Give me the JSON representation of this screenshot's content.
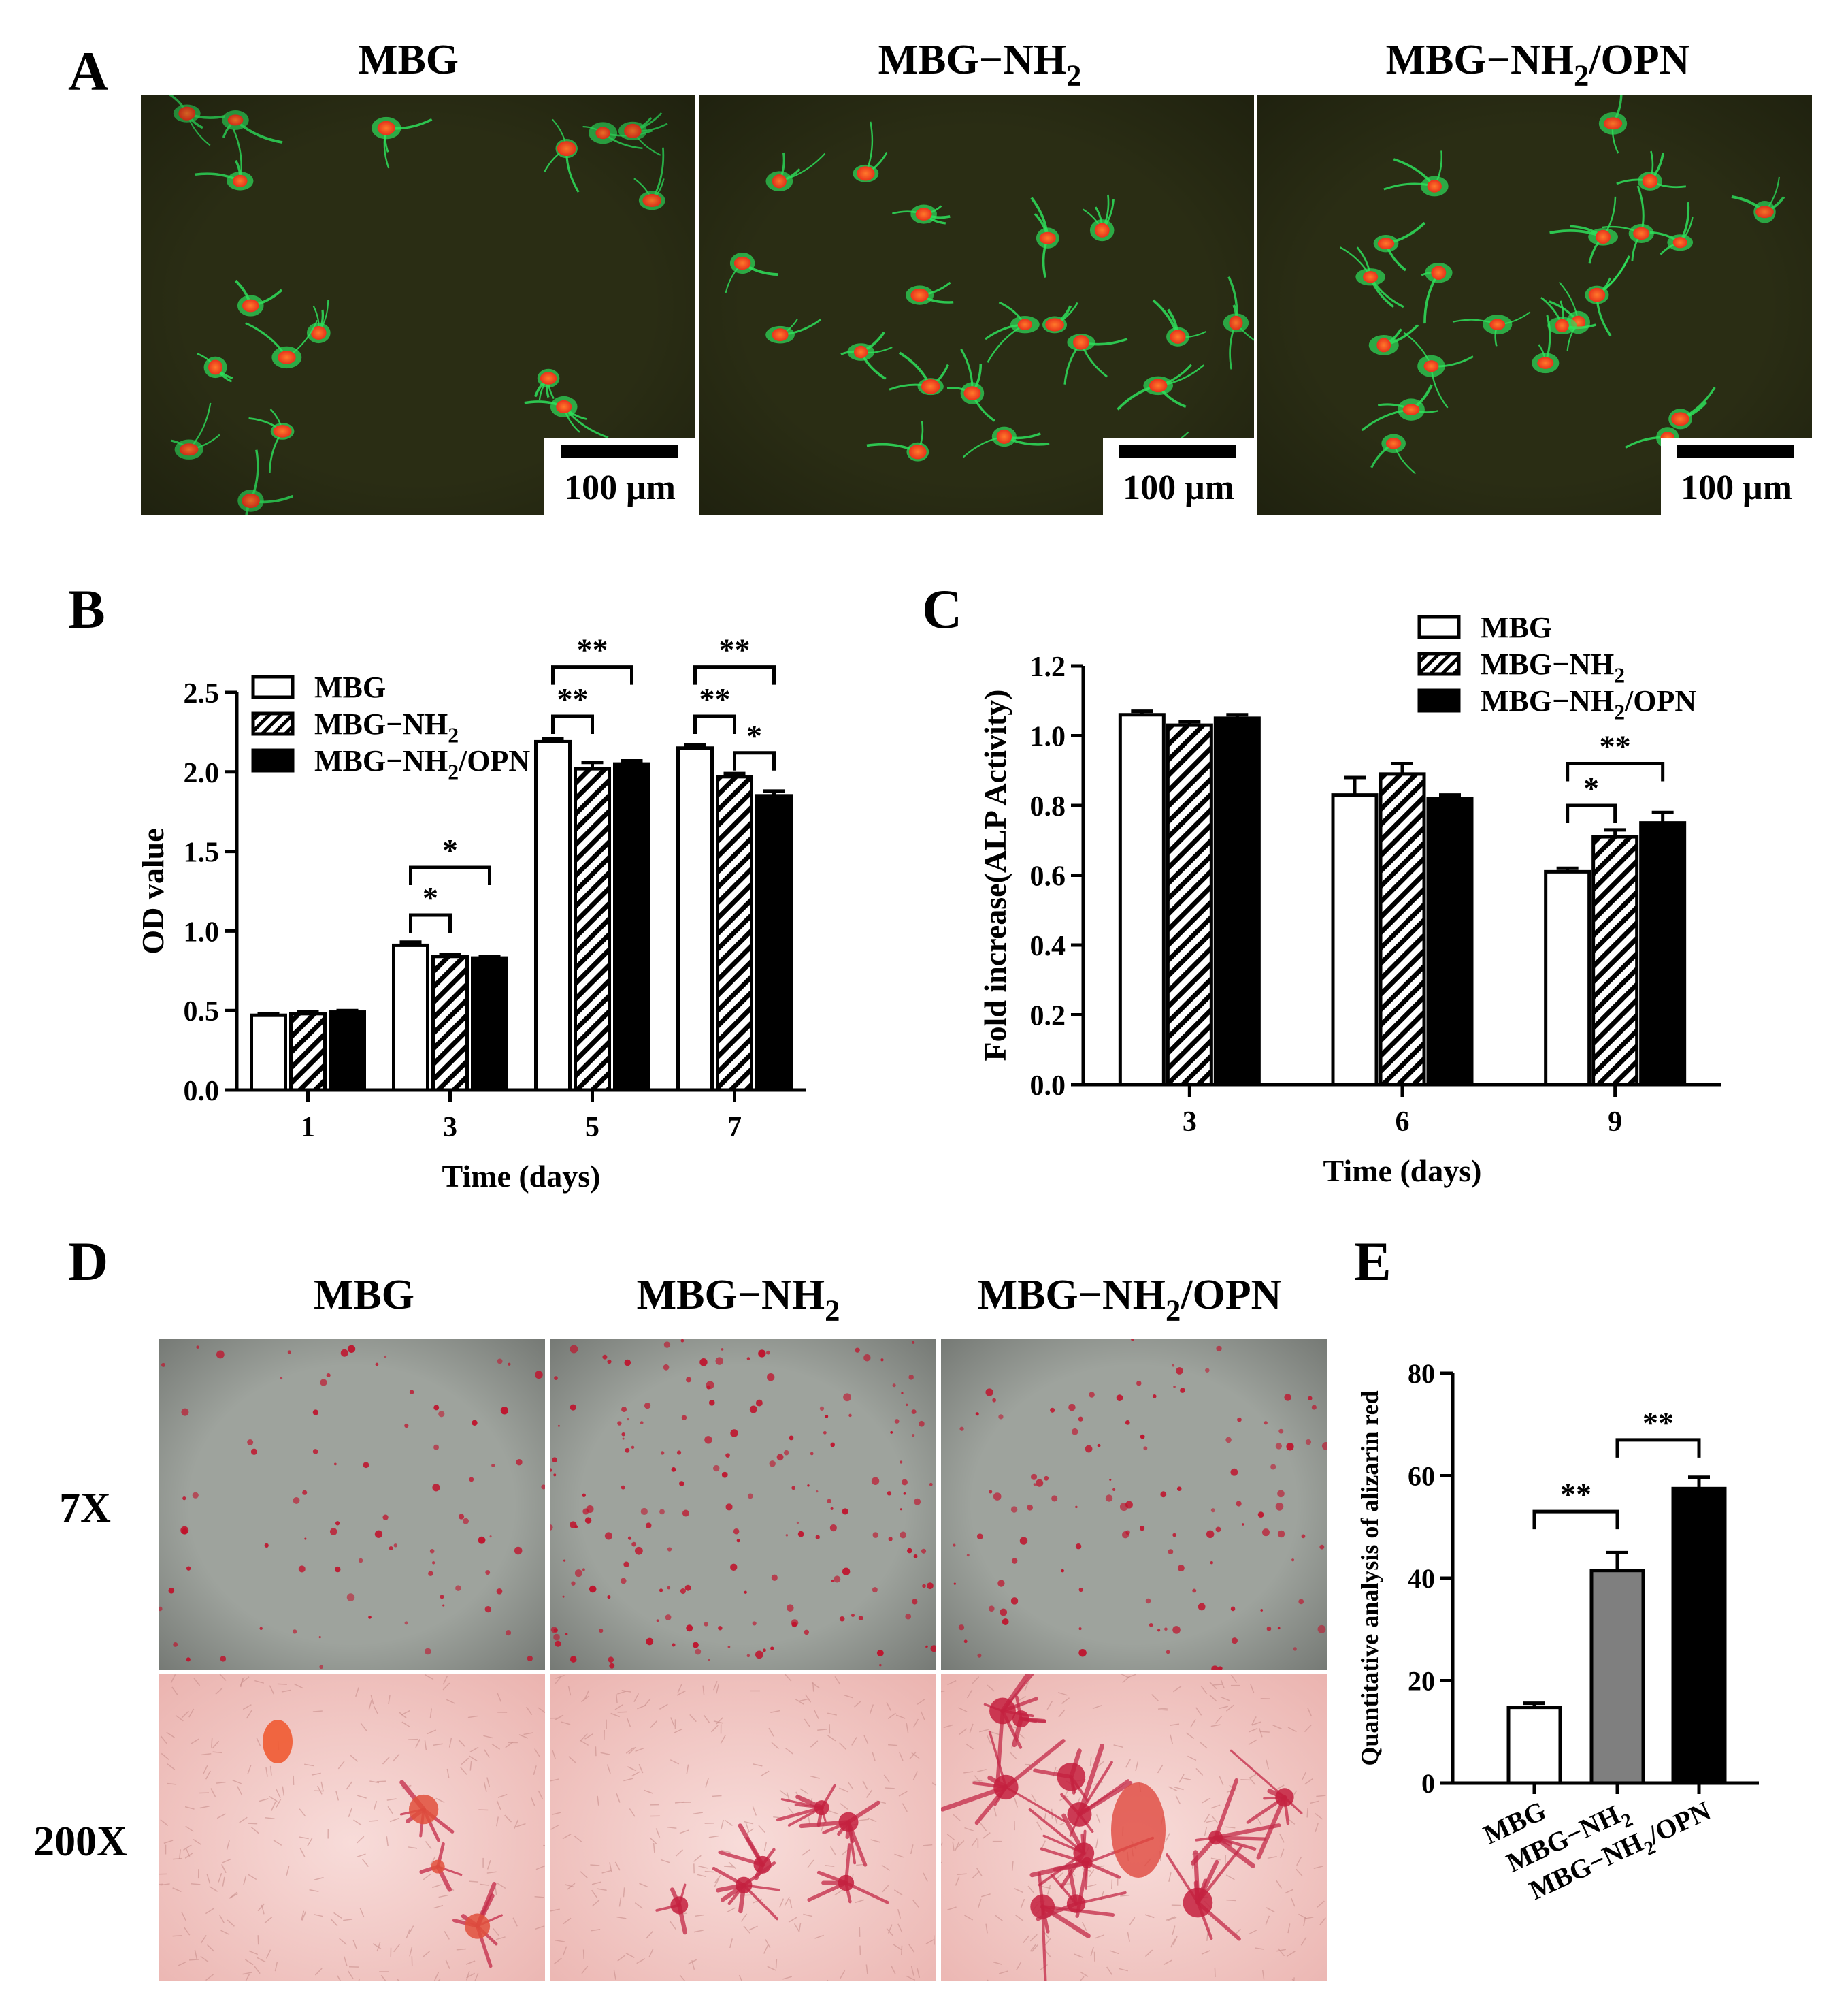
{
  "panel_letters": {
    "A": "A",
    "B": "B",
    "C": "C",
    "D": "D",
    "E": "E"
  },
  "colors": {
    "fluor_bg": "#2a2d14",
    "nucleus": "#f0441c",
    "cytoskeleton": "#2ee05a",
    "stain_dark_bg": "#9ea39d",
    "stain_light_bg": "#f4c9c5",
    "mineral": "#c0102a",
    "bar_gray": "#7f7f7f"
  },
  "panel_a": {
    "titles": [
      "MBG",
      "MBG−NH",
      "MBG−NH"
    ],
    "title_subs": [
      "",
      "2",
      "2"
    ],
    "title_tails": [
      "",
      "",
      "/OPN"
    ],
    "scalebar_label": "100 μm"
  },
  "panel_d": {
    "titles": [
      "MBG",
      "MBG−NH",
      "MBG−NH"
    ],
    "title_subs": [
      "",
      "2",
      "2"
    ],
    "title_tails": [
      "",
      "",
      "/OPN"
    ],
    "rows": [
      "7X",
      "200X"
    ]
  },
  "chart_data": [
    {
      "id": "B",
      "type": "bar",
      "xlabel": "Time (days)",
      "ylabel": "OD value",
      "categories": [
        "1",
        "3",
        "5",
        "7"
      ],
      "ylim": [
        0,
        2.5
      ],
      "yticks": [
        "0.0",
        "0.5",
        "1.0",
        "1.5",
        "2.0",
        "2.5"
      ],
      "legend_position": "top-left",
      "series": [
        {
          "name": "MBG",
          "name_sub": "",
          "name_tail": "",
          "fill": "open",
          "values": [
            0.47,
            0.91,
            2.19,
            2.15
          ],
          "errors": [
            0.01,
            0.02,
            0.02,
            0.02
          ]
        },
        {
          "name": "MBG−NH",
          "name_sub": "2",
          "name_tail": "",
          "fill": "hatch",
          "values": [
            0.48,
            0.84,
            2.02,
            1.97
          ],
          "errors": [
            0.01,
            0.01,
            0.04,
            0.02
          ]
        },
        {
          "name": "MBG−NH",
          "name_sub": "2",
          "name_tail": "/OPN",
          "fill": "solid",
          "values": [
            0.49,
            0.83,
            2.05,
            1.85
          ],
          "errors": [
            0.01,
            0.01,
            0.02,
            0.03
          ]
        }
      ],
      "significance": [
        {
          "category": 1,
          "from": 0,
          "to": 1,
          "label": "*",
          "y": 1.1
        },
        {
          "category": 1,
          "from": 0,
          "to": 2,
          "label": "*",
          "y": 1.4
        },
        {
          "category": 2,
          "from": 0,
          "to": 1,
          "label": "**",
          "y": 2.35
        },
        {
          "category": 2,
          "from": 0,
          "to": 2,
          "label": "**",
          "y": 2.66
        },
        {
          "category": 3,
          "from": 0,
          "to": 1,
          "label": "**",
          "y": 2.35
        },
        {
          "category": 3,
          "from": 1,
          "to": 2,
          "label": "*",
          "y": 2.12
        },
        {
          "category": 3,
          "from": 0,
          "to": 2,
          "label": "**",
          "y": 2.66
        }
      ]
    },
    {
      "id": "C",
      "type": "bar",
      "xlabel": "Time (days)",
      "ylabel": "Fold increase(ALP Activity)",
      "categories": [
        "3",
        "6",
        "9"
      ],
      "ylim": [
        0,
        1.2
      ],
      "yticks": [
        "0.0",
        "0.2",
        "0.4",
        "0.6",
        "0.8",
        "1.0",
        "1.2"
      ],
      "legend_position": "top-right",
      "series": [
        {
          "name": "MBG",
          "name_sub": "",
          "name_tail": "",
          "fill": "open",
          "values": [
            1.06,
            0.83,
            0.61
          ],
          "errors": [
            0.01,
            0.05,
            0.01
          ]
        },
        {
          "name": "MBG−NH",
          "name_sub": "2",
          "name_tail": "",
          "fill": "hatch",
          "values": [
            1.03,
            0.89,
            0.71
          ],
          "errors": [
            0.01,
            0.03,
            0.02
          ]
        },
        {
          "name": "MBG−NH",
          "name_sub": "2",
          "name_tail": "/OPN",
          "fill": "solid",
          "values": [
            1.05,
            0.82,
            0.75
          ],
          "errors": [
            0.01,
            0.01,
            0.03
          ]
        }
      ],
      "significance": [
        {
          "category": 2,
          "from": 0,
          "to": 1,
          "label": "*",
          "y": 0.8
        },
        {
          "category": 2,
          "from": 0,
          "to": 2,
          "label": "**",
          "y": 0.92
        }
      ]
    },
    {
      "id": "E",
      "type": "bar",
      "ylabel": "Quantitative analysis of alizarin red",
      "categories": [
        "MBG",
        "MBG−NH",
        "MBG−NH"
      ],
      "category_subs": [
        "",
        "2",
        "2"
      ],
      "category_tails": [
        "",
        "",
        "/OPN"
      ],
      "ylim": [
        0,
        80
      ],
      "yticks": [
        "0",
        "20",
        "40",
        "60",
        "80"
      ],
      "fills": [
        "open",
        "gray",
        "solid"
      ],
      "values": [
        14.8,
        41.5,
        57.5
      ],
      "errors": [
        0.8,
        3.5,
        2.2
      ],
      "significance": [
        {
          "from": 0,
          "to": 1,
          "label": "**",
          "y": 53
        },
        {
          "from": 1,
          "to": 2,
          "label": "**",
          "y": 67
        }
      ]
    }
  ]
}
